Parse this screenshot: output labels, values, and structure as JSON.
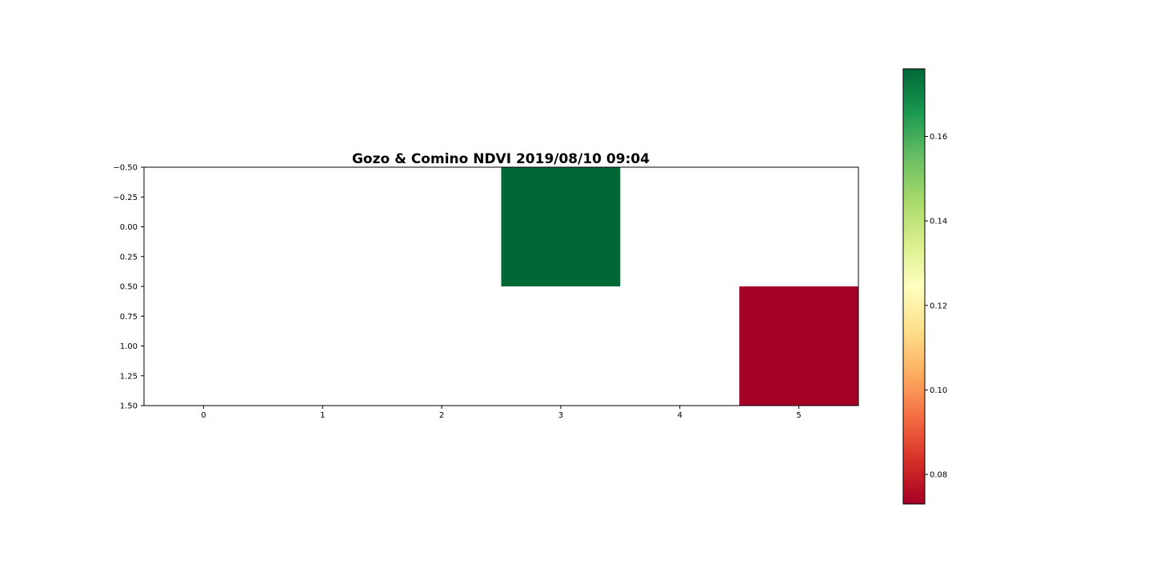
{
  "chart_data": {
    "type": "heatmap",
    "title": "Gozo & Comino NDVI 2019/08/10 09:04",
    "xlabel": "",
    "ylabel": "",
    "colormap": "RdYlGn",
    "xlim": [
      -0.5,
      5.5
    ],
    "ylim": [
      1.5,
      -0.5
    ],
    "x_ticks": [
      "0",
      "1",
      "2",
      "3",
      "4",
      "5"
    ],
    "y_ticks": [
      "−0.50",
      "−0.25",
      "0.00",
      "0.25",
      "0.50",
      "0.75",
      "1.00",
      "1.25",
      "1.50"
    ],
    "grid": [
      [
        null,
        null,
        null,
        0.176,
        null,
        null
      ],
      [
        null,
        null,
        null,
        null,
        null,
        0.073
      ]
    ],
    "colorbar": {
      "range": [
        0.073,
        0.176
      ],
      "ticks": [
        "0.08",
        "0.10",
        "0.12",
        "0.14",
        "0.16"
      ],
      "tick_values": [
        0.08,
        0.1,
        0.12,
        0.14,
        0.16
      ]
    },
    "colors": {
      "high": "#006837",
      "low": "#a50026"
    }
  }
}
